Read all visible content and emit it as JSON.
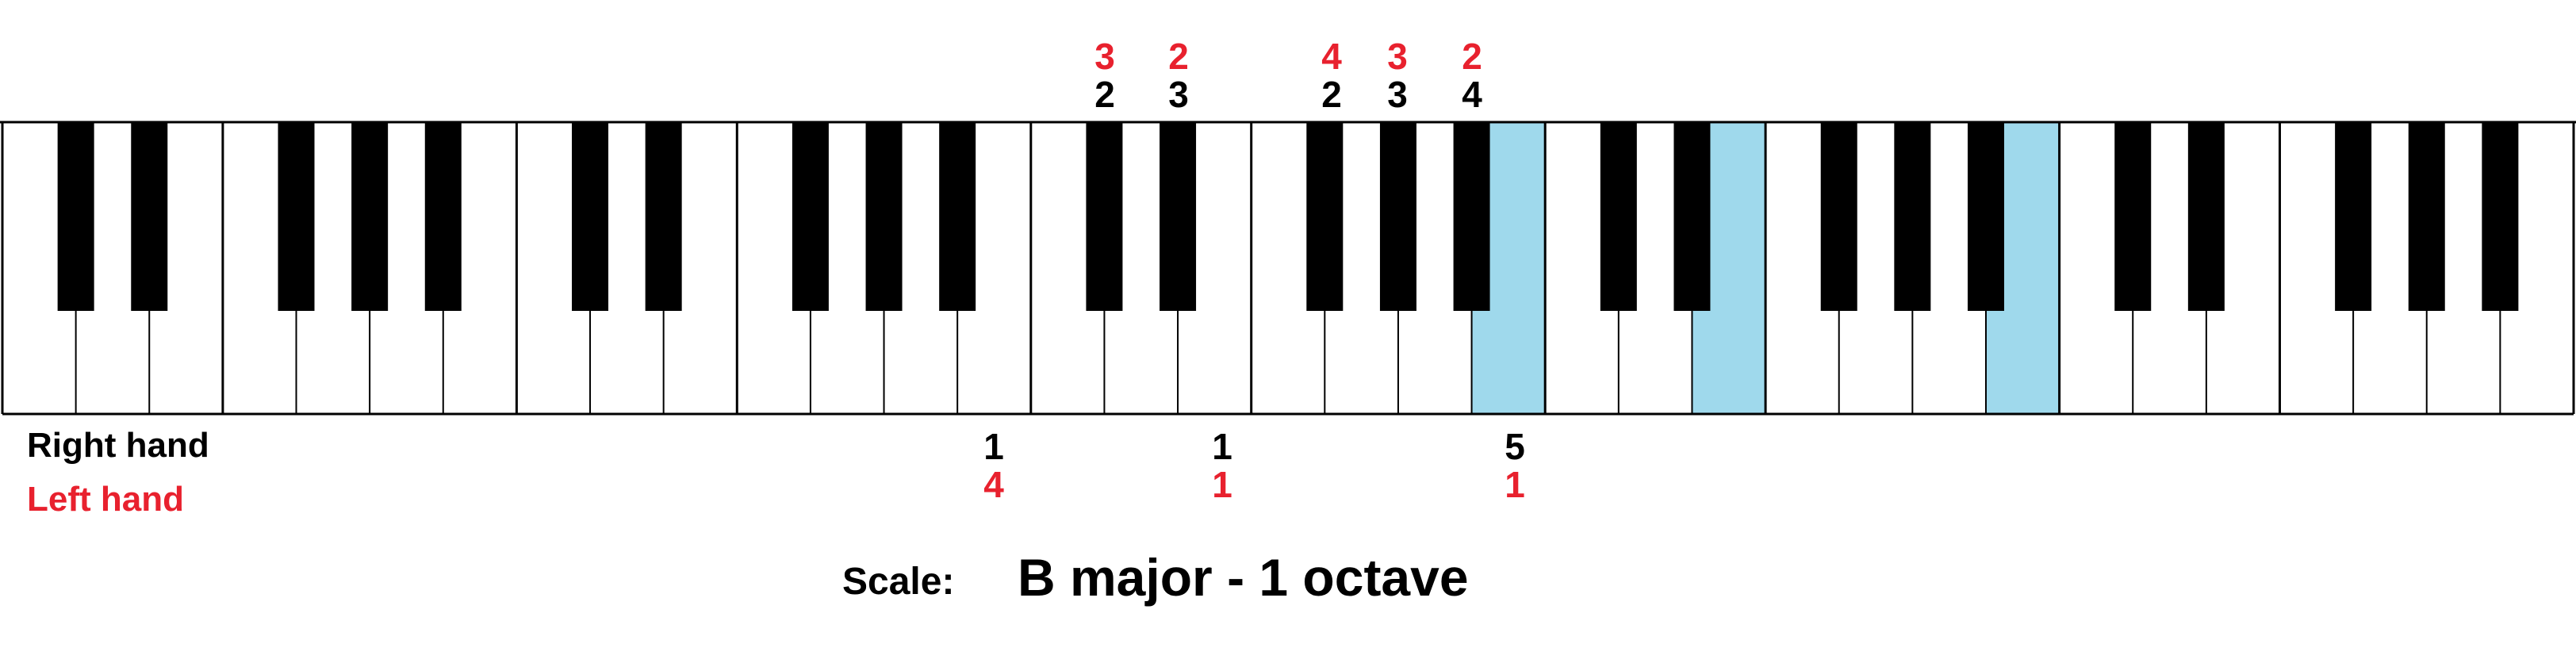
{
  "colors": {
    "right_hand": "#000000",
    "left_hand": "#e8212e",
    "highlight_white": "#9fd9ec",
    "highlight_black": "#00a2e8",
    "white_key": "#ffffff",
    "black_key": "#000000",
    "key_border": "#000000"
  },
  "keyboard": {
    "white_key_count": 35,
    "black_key_pattern": "C# D# | F# G# A# per octave",
    "highlighted_white_keys": [
      "B",
      "E",
      "B"
    ],
    "highlighted_black_keys": [
      "C#",
      "D#",
      "F#",
      "G#",
      "A#"
    ]
  },
  "top_fingering": {
    "left_hand": [
      "3",
      "2",
      "4",
      "3",
      "2"
    ],
    "right_hand": [
      "2",
      "3",
      "2",
      "3",
      "4"
    ]
  },
  "bottom_fingering": {
    "right_hand": [
      "1",
      "1",
      "5"
    ],
    "left_hand": [
      "4",
      "1",
      "1"
    ]
  },
  "labels": {
    "right_hand": "Right hand",
    "left_hand": "Left hand",
    "scale_prefix": "Scale:",
    "scale_name": "B major - 1 octave"
  }
}
